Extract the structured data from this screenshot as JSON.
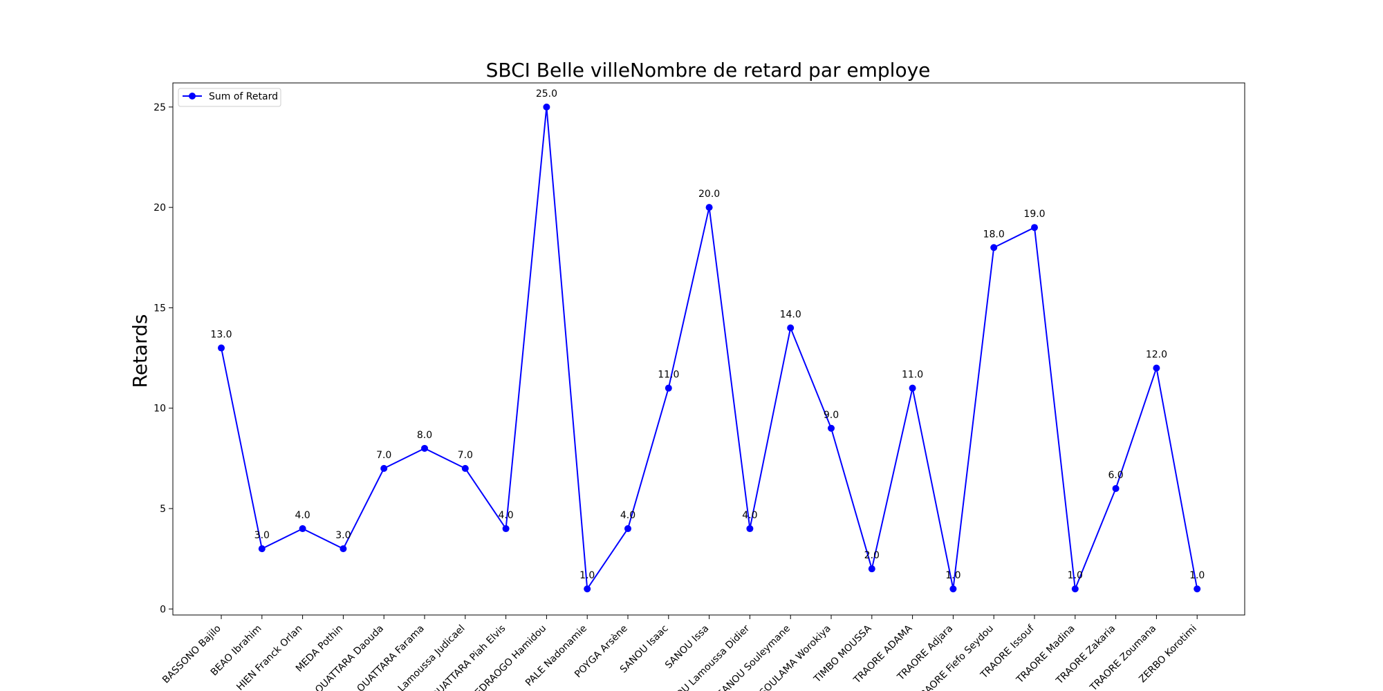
{
  "chart_data": {
    "type": "line",
    "title": "SBCI Belle villeNombre de retard par employe",
    "xlabel": "",
    "ylabel": "Retards",
    "ylim": [
      -0.3,
      26.2
    ],
    "yticks": [
      0,
      5,
      10,
      15,
      20,
      25
    ],
    "grid": false,
    "legend_position": "top-left",
    "line_color": "#0000ff",
    "categories": [
      "BASSONO Bajilo",
      "BEAO Ibrahim",
      "HIEN Franck Orlan",
      "MEDA Pothin",
      "OUATTARA Daouda",
      "OUATTARA Farama",
      "A Lamoussa Judicael",
      "OUATTARA Piah Elvis",
      "IEDRAOGO Hamidou",
      "PALE Nadonamie",
      "POYGA Arsène",
      "SANOU Isaac",
      "SANOU Issa",
      "OU Lamoussa Didier",
      "SANOU Souleymane",
      "SOULAMA Worokiya",
      "TIMBO MOUSSA",
      "TRAORE ADAMA",
      "TRAORE Adjara",
      "RAORE Fiefo Seydou",
      "TRAORE Issouf",
      "TRAORE Madina",
      "TRAORE Zakaria",
      "TRAORE Zoumana",
      "ZERBO Korotimi"
    ],
    "series": [
      {
        "name": "Sum of Retard",
        "values": [
          13,
          3,
          4,
          3,
          7,
          8,
          7,
          4,
          25,
          1,
          4,
          11,
          20,
          4,
          14,
          9,
          2,
          11,
          1,
          18,
          19,
          1,
          6,
          12,
          1
        ],
        "data_labels": [
          "13.0",
          "3.0",
          "4.0",
          "3.0",
          "7.0",
          "8.0",
          "7.0",
          "4.0",
          "25.0",
          "1.0",
          "4.0",
          "11.0",
          "20.0",
          "4.0",
          "14.0",
          "9.0",
          "2.0",
          "11.0",
          "1.0",
          "18.0",
          "19.0",
          "1.0",
          "6.0",
          "12.0",
          "1.0"
        ]
      }
    ]
  }
}
